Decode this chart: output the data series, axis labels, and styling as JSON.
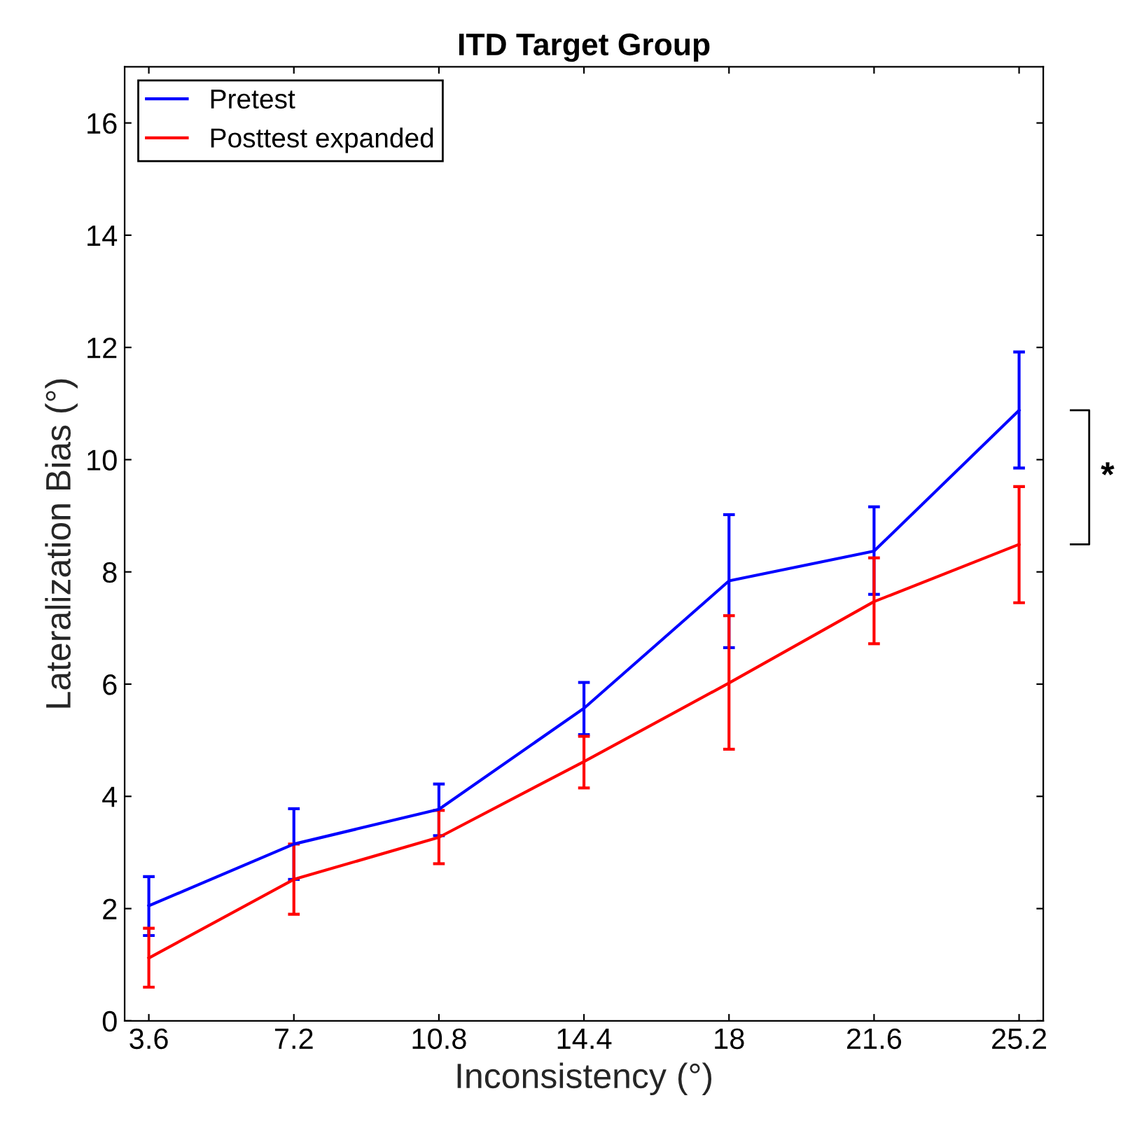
{
  "chart_data": {
    "type": "line",
    "title": "ITD Target Group",
    "xlabel": "Inconsistency (°)",
    "ylabel": "Lateralization Bias (°)",
    "x": [
      3.6,
      7.2,
      10.8,
      14.4,
      18,
      21.6,
      25.2
    ],
    "series": [
      {
        "name": "Pretest",
        "color": "#0000ff",
        "values": [
          2.05,
          3.15,
          3.77,
          5.57,
          7.84,
          8.37,
          10.88
        ],
        "errors": [
          [
            1.52,
            2.57
          ],
          [
            2.52,
            3.78
          ],
          [
            3.3,
            4.22
          ],
          [
            5.1,
            6.03
          ],
          [
            6.65,
            9.02
          ],
          [
            7.6,
            9.16
          ],
          [
            9.85,
            11.92
          ]
        ]
      },
      {
        "name": "Posttest expanded",
        "color": "#ff0000",
        "values": [
          1.12,
          2.52,
          3.27,
          4.62,
          6.02,
          7.47,
          8.49
        ],
        "errors": [
          [
            0.6,
            1.65
          ],
          [
            1.9,
            3.15
          ],
          [
            2.8,
            3.75
          ],
          [
            4.15,
            5.07
          ],
          [
            4.84,
            7.22
          ],
          [
            6.72,
            8.25
          ],
          [
            7.45,
            9.52
          ]
        ]
      }
    ],
    "xlim": [
      3.0,
      25.8
    ],
    "ylim": [
      0,
      17
    ],
    "xticks": [
      3.6,
      7.2,
      10.8,
      14.4,
      18,
      21.6,
      25.2
    ],
    "yticks": [
      0,
      2,
      4,
      6,
      8,
      10,
      12,
      14,
      16
    ],
    "annotations": [
      "*"
    ],
    "legend": "top left",
    "grid": false,
    "marker": "none",
    "line_style": "solid"
  }
}
